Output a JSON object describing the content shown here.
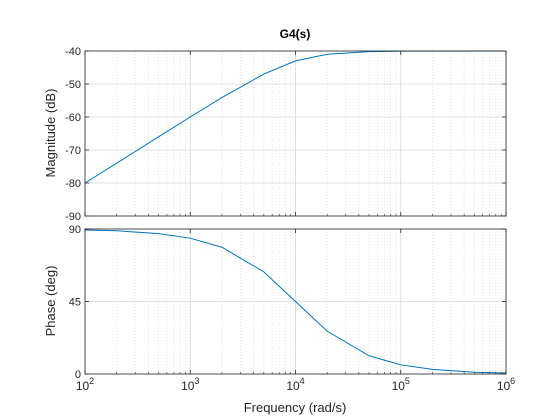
{
  "chart_data": {
    "type": "line",
    "title": "G4(s)",
    "xlabel": "Frequency  (rad/s)",
    "x_scale": "log",
    "xlim": [
      100,
      1000000
    ],
    "x_ticks": [
      100,
      1000,
      10000,
      100000,
      1000000
    ],
    "x_tick_labels": [
      {
        "base": "10",
        "exp": "2"
      },
      {
        "base": "10",
        "exp": "3"
      },
      {
        "base": "10",
        "exp": "4"
      },
      {
        "base": "10",
        "exp": "5"
      },
      {
        "base": "10",
        "exp": "6"
      }
    ],
    "grid": true,
    "line_color": "#0072BD",
    "subplots": [
      {
        "name": "magnitude",
        "ylabel": "Magnitude (dB)",
        "ylim": [
          -90,
          -40
        ],
        "y_ticks": [
          -90,
          -80,
          -70,
          -60,
          -50,
          -40
        ],
        "y_tick_labels": [
          "-90",
          "-80",
          "-70",
          "-60",
          "-50",
          "-40"
        ],
        "x": [
          100,
          200,
          500,
          1000,
          2000,
          5000,
          10000,
          20000,
          50000,
          100000,
          1000000
        ],
        "y": [
          -80.0,
          -74.0,
          -66.0,
          -60.0,
          -54.1,
          -47.0,
          -43.0,
          -41.0,
          -40.2,
          -40.04,
          -40.0
        ]
      },
      {
        "name": "phase",
        "ylabel": "Phase (deg)",
        "ylim": [
          0,
          90
        ],
        "y_ticks": [
          0,
          45,
          90
        ],
        "y_tick_labels": [
          "0",
          "45",
          "90"
        ],
        "x": [
          100,
          200,
          500,
          1000,
          2000,
          5000,
          10000,
          20000,
          50000,
          100000,
          200000,
          500000,
          1000000
        ],
        "y": [
          89.4,
          88.9,
          87.1,
          84.3,
          78.7,
          63.4,
          45.0,
          26.6,
          11.3,
          5.7,
          2.9,
          1.1,
          0.6
        ]
      }
    ]
  }
}
